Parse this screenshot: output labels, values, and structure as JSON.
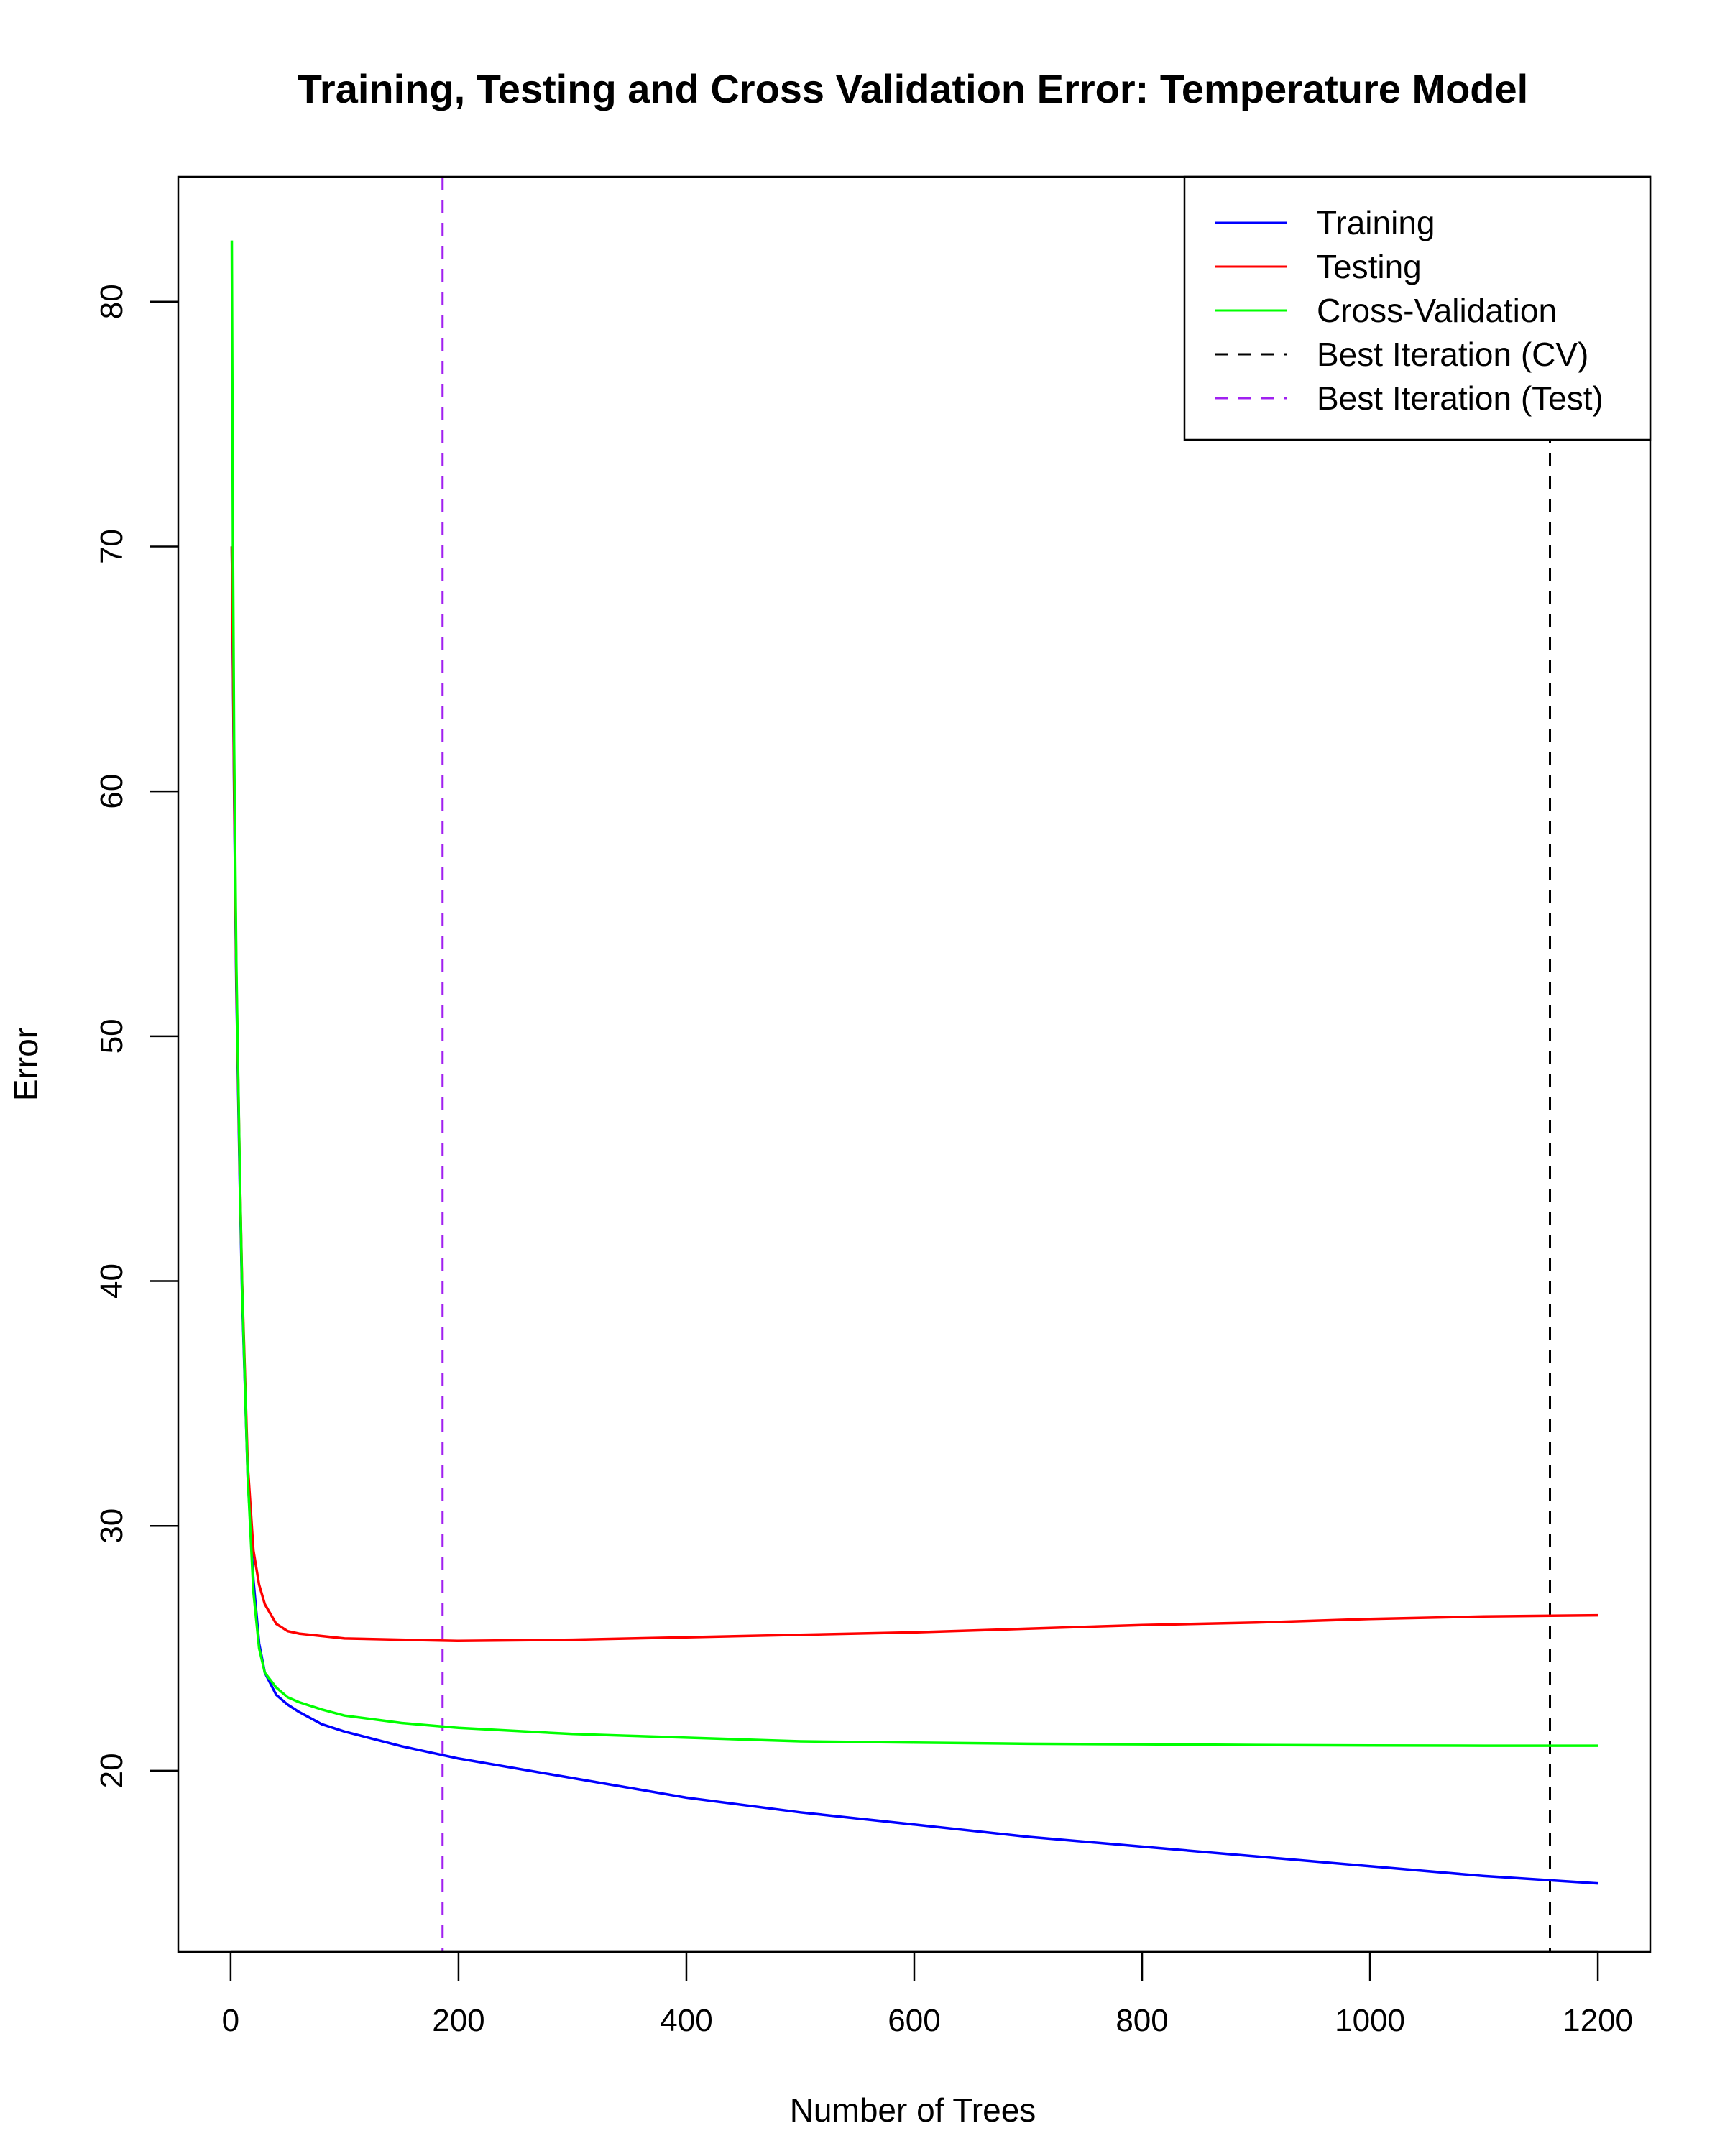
{
  "chart_data": {
    "type": "line",
    "title": "Training, Testing and Cross Validation Error: Temperature Model",
    "xlabel": "Number of Trees",
    "ylabel": "Error",
    "xlim": [
      -46,
      1246
    ],
    "ylim": [
      12.6,
      85.1
    ],
    "xticks": [
      0,
      200,
      400,
      600,
      800,
      1000,
      1200
    ],
    "yticks": [
      20,
      30,
      40,
      50,
      60,
      70,
      80
    ],
    "grid": false,
    "legend_position": "top-right",
    "series": [
      {
        "name": "Training",
        "color": "#0000ff",
        "x": [
          1,
          2,
          3,
          5,
          8,
          10,
          15,
          20,
          25,
          30,
          40,
          50,
          60,
          80,
          100,
          150,
          200,
          300,
          400,
          500,
          600,
          700,
          800,
          900,
          1000,
          1100,
          1200
        ],
        "y": [
          70.0,
          65.0,
          60.0,
          52.0,
          44.0,
          39.5,
          32.0,
          27.8,
          25.2,
          24.0,
          23.1,
          22.7,
          22.4,
          21.9,
          21.6,
          21.0,
          20.5,
          19.7,
          18.9,
          18.3,
          17.8,
          17.3,
          16.9,
          16.5,
          16.1,
          15.7,
          15.4
        ]
      },
      {
        "name": "Testing",
        "color": "#ff0000",
        "x": [
          1,
          2,
          3,
          5,
          8,
          10,
          15,
          20,
          25,
          30,
          40,
          50,
          60,
          80,
          100,
          150,
          200,
          300,
          400,
          500,
          600,
          700,
          800,
          900,
          1000,
          1100,
          1200
        ],
        "y": [
          70.0,
          65.5,
          60.5,
          52.5,
          44.5,
          40.0,
          32.5,
          29.0,
          27.6,
          26.8,
          26.0,
          25.7,
          25.6,
          25.5,
          25.4,
          25.35,
          25.3,
          25.35,
          25.45,
          25.55,
          25.65,
          25.8,
          25.95,
          26.05,
          26.2,
          26.3,
          26.35
        ]
      },
      {
        "name": "Cross-Validation",
        "color": "#00ff00",
        "x": [
          1,
          2,
          3,
          5,
          8,
          10,
          15,
          20,
          25,
          30,
          40,
          50,
          60,
          80,
          100,
          150,
          200,
          300,
          400,
          500,
          600,
          700,
          800,
          900,
          1000,
          1100,
          1200
        ],
        "y": [
          82.5,
          70.0,
          62.0,
          53.0,
          44.5,
          39.8,
          32.0,
          27.3,
          25.0,
          24.0,
          23.4,
          23.0,
          22.8,
          22.5,
          22.25,
          21.95,
          21.75,
          21.5,
          21.35,
          21.2,
          21.15,
          21.1,
          21.08,
          21.05,
          21.03,
          21.02,
          21.02
        ]
      }
    ],
    "vlines": [
      {
        "name": "Best Iteration (CV)",
        "x": 1158,
        "color": "#000000",
        "style": "dashed"
      },
      {
        "name": "Best Iteration (Test)",
        "x": 186,
        "color": "#a020f0",
        "style": "dashed"
      }
    ]
  }
}
